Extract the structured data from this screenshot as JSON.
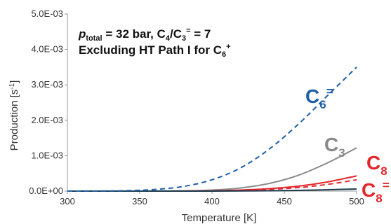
{
  "chart_data": {
    "type": "line",
    "xlabel": "Temperature [K]",
    "ylabel": "Production [s",
    "ylabel_superscript": "-1",
    "ylabel_close": "]",
    "xlim": [
      300,
      500
    ],
    "ylim": [
      0,
      0.005
    ],
    "x_ticks": [
      300,
      350,
      400,
      450,
      500
    ],
    "x_tick_labels": [
      "300",
      "350",
      "400",
      "450",
      "500"
    ],
    "y_ticks": [
      0,
      0.001,
      0.002,
      0.003,
      0.004,
      0.005
    ],
    "y_tick_labels": [
      "0.0E+00",
      "1.0E-03",
      "2.0E-03",
      "3.0E-03",
      "4.0E-03",
      "5.0E-03"
    ],
    "grid": false,
    "annotation": {
      "line1_p": "p",
      "line1_p_sub": "total",
      "line1_rest": " = 32 bar, C",
      "line1_c4_sub": "4",
      "line1_slash": "/C",
      "line1_c3_sub": "3",
      "line1_c3_sup": "=",
      "line1_tail": " = 7",
      "line2_text": "Excluding HT Path I for C",
      "line2_sub": "6",
      "line2_sup": "+"
    },
    "x": [
      300,
      320,
      340,
      360,
      380,
      400,
      420,
      440,
      460,
      480,
      500
    ],
    "series": [
      {
        "label_main": "C",
        "label_sub": "6",
        "label_sup": "=",
        "color": "#1f5fa8",
        "dash": true,
        "values": [
          0.0,
          3e-06,
          1.2e-05,
          4.5e-05,
          0.00013,
          0.00032,
          0.00066,
          0.0012,
          0.0019,
          0.0027,
          0.0035
        ]
      },
      {
        "label_main": "C",
        "label_sub": "3",
        "label_sup": "",
        "color": "#8a8a8a",
        "dash": false,
        "values": [
          0.0,
          0.0,
          0.0,
          2e-06,
          8e-06,
          3e-05,
          9e-05,
          0.00022,
          0.00045,
          0.0008,
          0.00122
        ]
      },
      {
        "label_main": "C",
        "label_sub": "8",
        "label_sup": "",
        "color": "#e3262a",
        "dash": false,
        "values": [
          0.0,
          0.0,
          0.0,
          0.0,
          2e-06,
          8e-06,
          3e-05,
          7e-05,
          0.00014,
          0.00026,
          0.00043
        ]
      },
      {
        "label_main": "C",
        "label_sub": "8",
        "label_sup": "=",
        "color": "#e3262a",
        "dash": true,
        "values": [
          0.0,
          0.0,
          0.0,
          0.0,
          2e-06,
          6e-06,
          2.2e-05,
          5e-05,
          0.0001,
          0.00019,
          0.00032
        ]
      },
      {
        "label_main": "",
        "label_sub": "",
        "label_sup": "",
        "color": "#1d3b4f",
        "dash": false,
        "values": [
          0.0,
          0.0,
          0.0,
          0.0,
          0.0,
          1e-06,
          4e-06,
          1e-05,
          2e-05,
          3.8e-05,
          6e-05
        ]
      }
    ]
  }
}
